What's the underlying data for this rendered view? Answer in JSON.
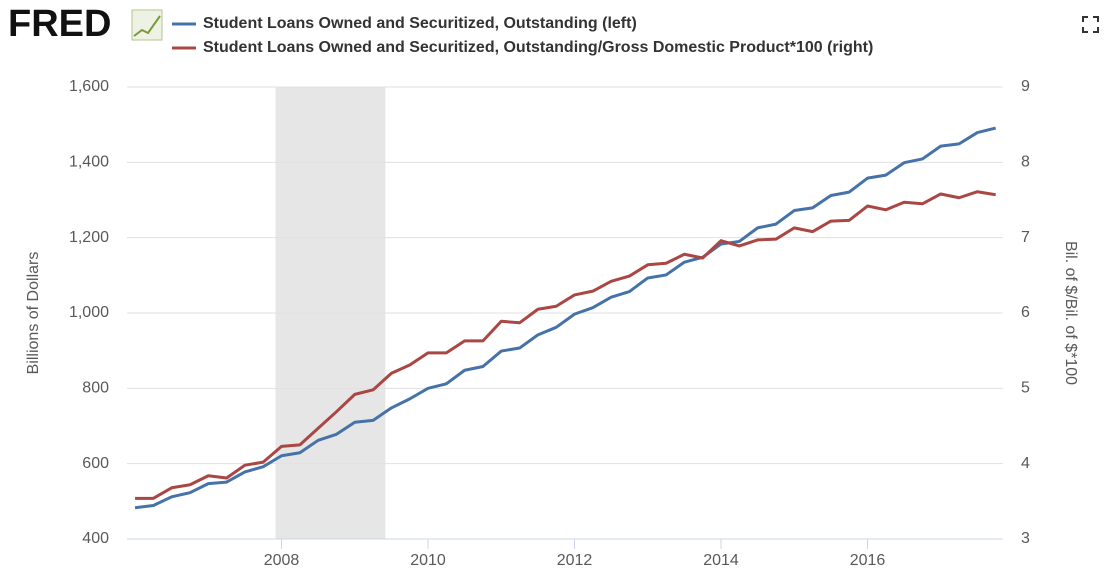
{
  "chart_data": {
    "type": "line",
    "logo": "FRED",
    "y_label": "Billions of Dollars",
    "y2_label": "Bil. of $/Bil. of $*100",
    "x": [
      2006,
      2006.25,
      2006.5,
      2006.75,
      2007,
      2007.25,
      2007.5,
      2007.75,
      2008,
      2008.25,
      2008.5,
      2008.75,
      2009,
      2009.25,
      2009.5,
      2009.75,
      2010,
      2010.25,
      2010.5,
      2010.75,
      2011,
      2011.25,
      2011.5,
      2011.75,
      2012,
      2012.25,
      2012.5,
      2012.75,
      2013,
      2013.25,
      2013.5,
      2013.75,
      2014,
      2014.25,
      2014.5,
      2014.75,
      2015,
      2015.25,
      2015.5,
      2015.75,
      2016,
      2016.25,
      2016.5,
      2016.75,
      2017,
      2017.25,
      2017.5,
      2017.75
    ],
    "series": [
      {
        "name": "Student Loans Owned and Securitized, Outstanding (left)",
        "color": "#4572a7",
        "axis": "y",
        "values": [
          483,
          489,
          512,
          523,
          547,
          551,
          578,
          592,
          621,
          629,
          662,
          678,
          710,
          715,
          748,
          772,
          800,
          812,
          848,
          858,
          899,
          907,
          942,
          962,
          997,
          1014,
          1042,
          1057,
          1093,
          1101,
          1135,
          1148,
          1183,
          1190,
          1226,
          1236,
          1272,
          1279,
          1312,
          1321,
          1358,
          1366,
          1399,
          1409,
          1443,
          1449,
          1479,
          1491
        ]
      },
      {
        "name": "Student Loans Owned and Securitized, Outstanding/Gross Domestic Product*100 (right)",
        "color": "#aa4643",
        "axis": "y2",
        "values": [
          3.54,
          3.54,
          3.68,
          3.72,
          3.84,
          3.81,
          3.98,
          4.02,
          4.23,
          4.25,
          4.47,
          4.69,
          4.92,
          4.98,
          5.2,
          5.31,
          5.47,
          5.47,
          5.63,
          5.63,
          5.89,
          5.87,
          6.05,
          6.09,
          6.24,
          6.29,
          6.42,
          6.49,
          6.64,
          6.66,
          6.78,
          6.73,
          6.96,
          6.89,
          6.97,
          6.98,
          7.13,
          7.08,
          7.22,
          7.23,
          7.42,
          7.37,
          7.47,
          7.45,
          7.58,
          7.53,
          7.61,
          7.57
        ]
      }
    ],
    "recession": [
      2007.917,
      2009.417
    ],
    "xlim": [
      2005.89,
      2017.85
    ],
    "xticks": [
      2008,
      2010,
      2012,
      2014,
      2016
    ],
    "ylim": [
      400,
      1600
    ],
    "yticks": [
      400,
      600,
      800,
      {
        "value": 1000,
        "label": "1,000"
      },
      {
        "value": 1200,
        "label": "1,200"
      },
      {
        "value": 1400,
        "label": "1,400"
      },
      {
        "value": 1600,
        "label": "1,600"
      }
    ],
    "y2lim": [
      3,
      9
    ],
    "y2ticks": [
      3,
      4,
      5,
      6,
      7,
      8,
      9
    ],
    "grid": true
  }
}
